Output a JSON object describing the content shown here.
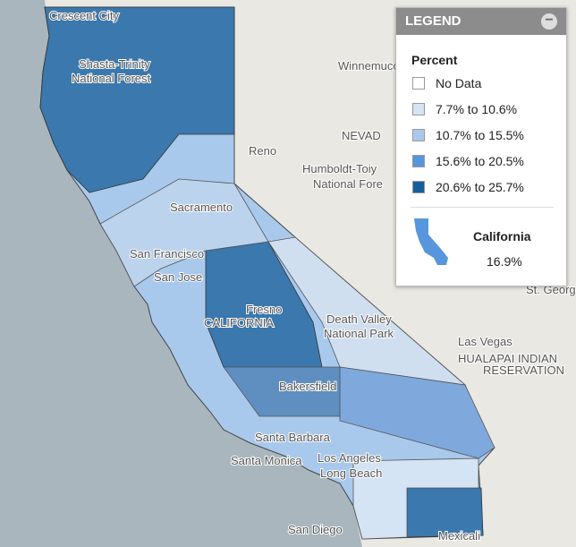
{
  "legend": {
    "title": "LEGEND",
    "subtitle": "Percent",
    "items": [
      {
        "label": "No Data",
        "color": "#ffffff"
      },
      {
        "label": "7.7% to 10.6%",
        "color": "#d4e4f4"
      },
      {
        "label": "10.7% to 15.5%",
        "color": "#a9c9ec"
      },
      {
        "label": "15.6% to 20.5%",
        "color": "#5795dc"
      },
      {
        "label": "20.6% to 25.7%",
        "color": "#15609a"
      }
    ]
  },
  "summary": {
    "name": "California",
    "value": "16.9%"
  },
  "map_labels": [
    "Crescent City",
    "Shasta-Trinity",
    "National Forest",
    "Winnemucca",
    "NEVAD",
    "Reno",
    "Humboldt-Toiy",
    "National Fore",
    "Sacramento",
    "San Francisco",
    "San Jose",
    "CALIFORNIA",
    "Fresno",
    "Death Valley",
    "National Park",
    "Las Vegas",
    "HUALAPAI INDIAN",
    "RESERVATION",
    "St. George",
    "Bakersfield",
    "Santa Barbara",
    "Santa Monica",
    "Los Angeles",
    "Long Beach",
    "San Diego",
    "Mexicali"
  ]
}
